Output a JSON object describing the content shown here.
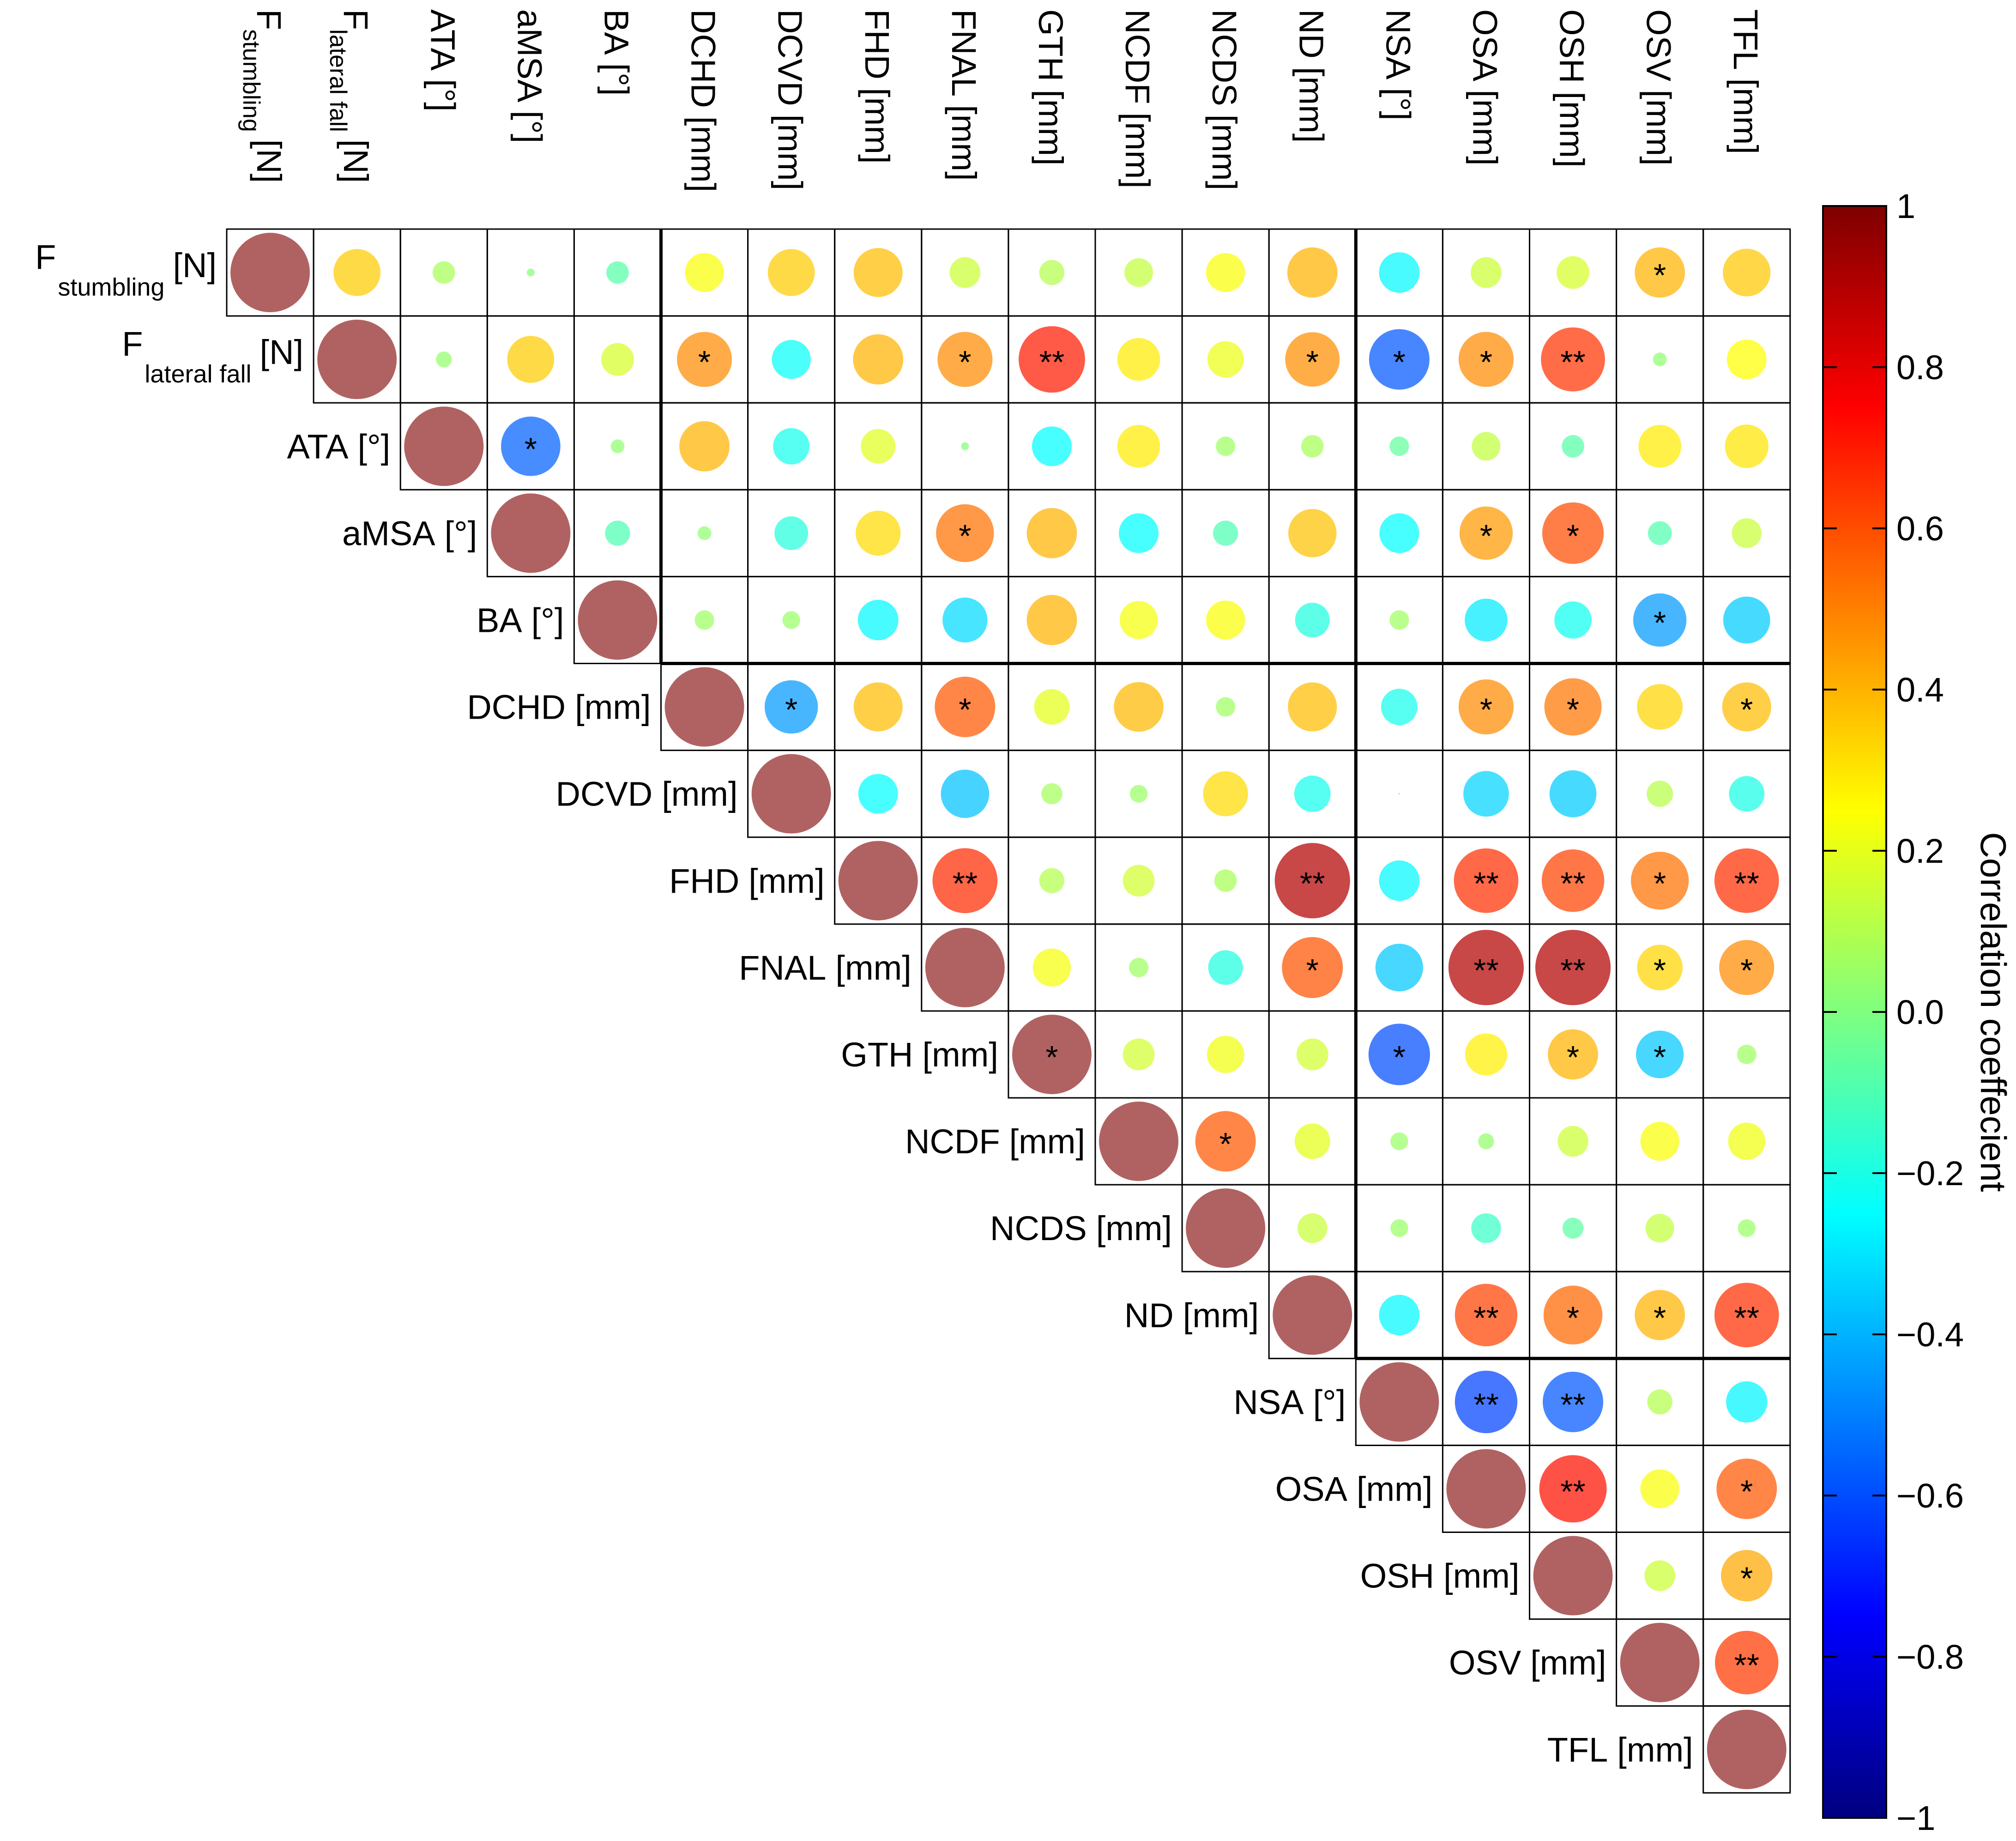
{
  "chart_data": {
    "type": "heatmap",
    "variables": [
      {
        "main": "F",
        "sub": "stumbling",
        "unit": "[N]"
      },
      {
        "main": "F",
        "sub": "lateral fall",
        "unit": "[N]"
      },
      {
        "main": "ATA",
        "sub": "",
        "unit": "[°]"
      },
      {
        "main": "aMSA",
        "sub": "",
        "unit": "[°]"
      },
      {
        "main": "BA",
        "sub": "",
        "unit": "[°]"
      },
      {
        "main": "DCHD",
        "sub": "",
        "unit": "[mm]"
      },
      {
        "main": "DCVD",
        "sub": "",
        "unit": "[mm]"
      },
      {
        "main": "FHD",
        "sub": "",
        "unit": "[mm]"
      },
      {
        "main": "FNAL",
        "sub": "",
        "unit": "[mm]"
      },
      {
        "main": "GTH",
        "sub": "",
        "unit": "[mm]"
      },
      {
        "main": "NCDF",
        "sub": "",
        "unit": "[mm]"
      },
      {
        "main": "NCDS",
        "sub": "",
        "unit": "[mm]"
      },
      {
        "main": "ND",
        "sub": "",
        "unit": "[mm]"
      },
      {
        "main": "NSA",
        "sub": "",
        "unit": "[°]"
      },
      {
        "main": "OSA",
        "sub": "",
        "unit": "[mm]"
      },
      {
        "main": "OSH",
        "sub": "",
        "unit": "[mm]"
      },
      {
        "main": "OSV",
        "sub": "",
        "unit": "[mm]"
      },
      {
        "main": "TFL",
        "sub": "",
        "unit": "[mm]"
      }
    ],
    "correlations": [
      [
        1.0,
        0.35,
        0.08,
        0.01,
        -0.08,
        0.24,
        0.35,
        0.38,
        0.15,
        0.1,
        0.13,
        0.24,
        0.4,
        -0.26,
        0.15,
        0.17,
        0.4,
        0.36
      ],
      [
        null,
        1.0,
        0.04,
        0.35,
        0.17,
        0.48,
        -0.24,
        0.4,
        0.48,
        0.7,
        0.29,
        0.21,
        0.47,
        -0.58,
        0.48,
        0.65,
        0.03,
        0.25
      ],
      [
        null,
        null,
        1.0,
        -0.56,
        0.03,
        0.4,
        -0.21,
        0.19,
        0.01,
        -0.25,
        0.29,
        0.06,
        0.08,
        -0.06,
        0.13,
        -0.08,
        0.29,
        0.3
      ],
      [
        null,
        null,
        null,
        1.0,
        -0.1,
        0.03,
        -0.18,
        0.32,
        0.53,
        0.4,
        -0.25,
        -0.1,
        0.37,
        -0.25,
        0.45,
        0.6,
        -0.09,
        0.14
      ],
      [
        null,
        null,
        null,
        null,
        1.0,
        0.06,
        0.05,
        -0.26,
        -0.32,
        0.4,
        0.23,
        0.24,
        -0.19,
        0.06,
        -0.29,
        -0.22,
        -0.45,
        -0.35
      ],
      [
        null,
        null,
        null,
        null,
        null,
        1.0,
        -0.45,
        0.38,
        0.58,
        0.2,
        0.39,
        0.06,
        0.38,
        -0.21,
        0.48,
        0.52,
        0.33,
        0.38
      ],
      [
        null,
        null,
        null,
        null,
        null,
        null,
        1.0,
        -0.25,
        -0.37,
        0.07,
        0.05,
        0.32,
        -0.21,
        0.0,
        -0.33,
        -0.35,
        0.11,
        -0.2
      ],
      [
        null,
        null,
        null,
        null,
        null,
        null,
        null,
        1.0,
        0.67,
        0.1,
        0.16,
        0.08,
        0.9,
        -0.26,
        0.66,
        0.62,
        0.53,
        0.66
      ],
      [
        null,
        null,
        null,
        null,
        null,
        null,
        null,
        null,
        1.0,
        0.23,
        0.06,
        -0.19,
        0.59,
        -0.36,
        0.9,
        0.9,
        0.33,
        0.48
      ],
      [
        null,
        null,
        null,
        null,
        null,
        null,
        null,
        null,
        null,
        1.0,
        0.16,
        0.22,
        0.16,
        -0.6,
        0.28,
        0.4,
        -0.36,
        0.06
      ],
      [
        null,
        null,
        null,
        null,
        null,
        null,
        null,
        null,
        null,
        null,
        1.0,
        0.58,
        0.2,
        0.05,
        0.04,
        0.15,
        0.24,
        0.22
      ],
      [
        null,
        null,
        null,
        null,
        null,
        null,
        null,
        null,
        null,
        null,
        null,
        1.0,
        0.14,
        0.05,
        -0.14,
        -0.07,
        0.13,
        0.05
      ],
      [
        null,
        null,
        null,
        null,
        null,
        null,
        null,
        null,
        null,
        null,
        null,
        null,
        1.0,
        -0.26,
        0.62,
        0.55,
        0.4,
        0.66
      ],
      [
        null,
        null,
        null,
        null,
        null,
        null,
        null,
        null,
        null,
        null,
        null,
        null,
        null,
        1.0,
        -0.62,
        -0.58,
        0.1,
        -0.27
      ],
      [
        null,
        null,
        null,
        null,
        null,
        null,
        null,
        null,
        null,
        null,
        null,
        null,
        null,
        null,
        1.0,
        0.72,
        0.24,
        0.58
      ],
      [
        null,
        null,
        null,
        null,
        null,
        null,
        null,
        null,
        null,
        null,
        null,
        null,
        null,
        null,
        null,
        1.0,
        0.15,
        0.42
      ],
      [
        null,
        null,
        null,
        null,
        null,
        null,
        null,
        null,
        null,
        null,
        null,
        null,
        null,
        null,
        null,
        null,
        1.0,
        0.64
      ],
      [
        null,
        null,
        null,
        null,
        null,
        null,
        null,
        null,
        null,
        null,
        null,
        null,
        null,
        null,
        null,
        null,
        null,
        1.0
      ]
    ],
    "significance": [
      [
        "",
        "",
        "",
        "",
        "",
        "",
        "",
        "",
        "",
        "",
        "",
        "",
        "",
        "",
        "",
        "",
        "*",
        ""
      ],
      [
        "",
        "",
        "",
        "",
        "",
        "*",
        "",
        "",
        "*",
        "**",
        "",
        "",
        "*",
        "*",
        "*",
        "**",
        "",
        ""
      ],
      [
        "",
        "",
        "",
        "*",
        "",
        "",
        "",
        "",
        "",
        "",
        "",
        "",
        "",
        "",
        "",
        "",
        "",
        ""
      ],
      [
        "",
        "",
        "",
        "",
        "",
        "",
        "",
        "",
        "*",
        "",
        "",
        "",
        "",
        "",
        "*",
        "*",
        "",
        ""
      ],
      [
        "",
        "",
        "",
        "",
        "",
        "",
        "",
        "",
        "",
        "",
        "",
        "",
        "",
        "",
        "",
        "",
        "*",
        ""
      ],
      [
        "",
        "",
        "",
        "",
        "",
        "",
        "*",
        "",
        "*",
        "",
        "",
        "",
        "",
        "",
        "*",
        "*",
        "",
        "*"
      ],
      [
        "",
        "",
        "",
        "",
        "",
        "",
        "",
        "",
        "",
        "",
        "",
        "",
        "",
        "",
        "",
        "",
        "",
        ""
      ],
      [
        "",
        "",
        "",
        "",
        "",
        "",
        "",
        "",
        "**",
        "",
        "",
        "",
        "**",
        "",
        "**",
        "**",
        "*",
        "**"
      ],
      [
        "",
        "",
        "",
        "",
        "",
        "",
        "",
        "",
        "",
        "",
        "",
        "",
        "*",
        "",
        "**",
        "**",
        "*",
        "*"
      ],
      [
        "",
        "",
        "",
        "",
        "",
        "",
        "",
        "",
        "",
        "*",
        "",
        "",
        "",
        "*",
        "",
        "*",
        "*",
        ""
      ],
      [
        "",
        "",
        "",
        "",
        "",
        "",
        "",
        "",
        "",
        "",
        "",
        "*",
        "",
        "",
        "",
        "",
        "",
        ""
      ],
      [
        "",
        "",
        "",
        "",
        "",
        "",
        "",
        "",
        "",
        "",
        "",
        "",
        "",
        "",
        "",
        "",
        "",
        ""
      ],
      [
        "",
        "",
        "",
        "",
        "",
        "",
        "",
        "",
        "",
        "",
        "",
        "",
        "",
        "",
        "**",
        "*",
        "*",
        "**"
      ],
      [
        "",
        "",
        "",
        "",
        "",
        "",
        "",
        "",
        "",
        "",
        "",
        "",
        "",
        "",
        "**",
        "**",
        "",
        ""
      ],
      [
        "",
        "",
        "",
        "",
        "",
        "",
        "",
        "",
        "",
        "",
        "",
        "",
        "",
        "",
        "",
        "**",
        "",
        "*"
      ],
      [
        "",
        "",
        "",
        "",
        "",
        "",
        "",
        "",
        "",
        "",
        "",
        "",
        "",
        "",
        "",
        "",
        "",
        "*"
      ],
      [
        "",
        "",
        "",
        "",
        "",
        "",
        "",
        "",
        "",
        "",
        "",
        "",
        "",
        "",
        "",
        "",
        "",
        "**"
      ],
      [
        "",
        "",
        "",
        "",
        "",
        "",
        "",
        "",
        "",
        "",
        "",
        "",
        "",
        "",
        "",
        "",
        "",
        ""
      ]
    ],
    "diagonal_value": 1.0,
    "diagonal_color": "#B06262",
    "group_boundaries_after": [
      4,
      12
    ],
    "colorbar": {
      "label": "Correlation coeffecient",
      "range": [
        -1,
        1
      ],
      "ticks": [
        {
          "value": 1,
          "label": "1"
        },
        {
          "value": 0.8,
          "label": "0.8"
        },
        {
          "value": 0.6,
          "label": "0.6"
        },
        {
          "value": 0.4,
          "label": "0.4"
        },
        {
          "value": 0.2,
          "label": "0.2"
        },
        {
          "value": 0.0,
          "label": "0.0"
        },
        {
          "value": -0.2,
          "label": "−0.2"
        },
        {
          "value": -0.4,
          "label": "−0.4"
        },
        {
          "value": -0.6,
          "label": "−0.6"
        },
        {
          "value": -0.8,
          "label": "−0.8"
        },
        {
          "value": -1,
          "label": "−1"
        }
      ],
      "colormap": "jet"
    }
  }
}
